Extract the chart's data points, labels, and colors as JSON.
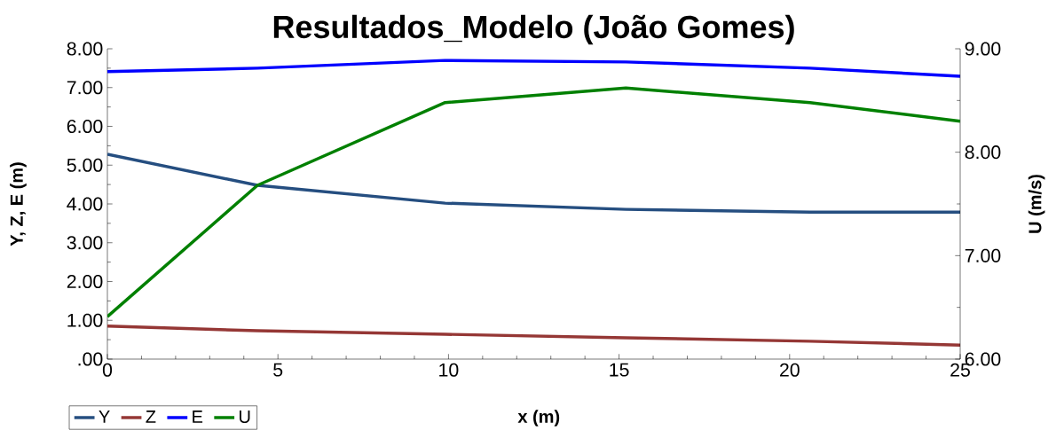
{
  "chart_data": {
    "type": "line",
    "title": "Resultados_Modelo (João Gomes)",
    "xlabel": "x (m)",
    "ylabel": "Y, Z, E (m)",
    "y2label": "U (m/s)",
    "x": [
      0,
      4.4,
      9.9,
      15.2,
      20.6,
      25
    ],
    "series": [
      {
        "name": "Y",
        "color": "#254e80",
        "values": [
          5.28,
          4.48,
          4.02,
          3.86,
          3.79,
          3.79
        ]
      },
      {
        "name": "Z",
        "color": "#953735",
        "values": [
          0.85,
          0.73,
          0.64,
          0.55,
          0.46,
          0.36
        ]
      },
      {
        "name": "E",
        "color": "#0000ff",
        "values": [
          7.41,
          7.5,
          7.7,
          7.66,
          7.5,
          7.29
        ]
      },
      {
        "name": "U",
        "color": "#008000",
        "axis": "y2",
        "values": [
          6.41,
          7.68,
          8.48,
          8.62,
          8.48,
          8.3
        ]
      }
    ],
    "xlim": [
      0,
      25
    ],
    "xticks": [
      0,
      5,
      10,
      15,
      20,
      25
    ],
    "ylim": [
      0,
      8
    ],
    "yticks": [
      {
        "value": 0,
        "label": ".00"
      },
      {
        "value": 1,
        "label": "1.00"
      },
      {
        "value": 2,
        "label": "2.00"
      },
      {
        "value": 3,
        "label": "3.00"
      },
      {
        "value": 4,
        "label": "4.00"
      },
      {
        "value": 5,
        "label": "5.00"
      },
      {
        "value": 6,
        "label": "6.00"
      },
      {
        "value": 7,
        "label": "7.00"
      },
      {
        "value": 8,
        "label": "8.00"
      }
    ],
    "y2lim": [
      6,
      9
    ],
    "y2ticks": [
      {
        "value": 6,
        "label": "6.00"
      },
      {
        "value": 7,
        "label": "7.00"
      },
      {
        "value": 8,
        "label": "8.00"
      },
      {
        "value": 9,
        "label": "9.00"
      }
    ],
    "legend": "bottom left",
    "grid": false,
    "marker": "none",
    "line_style": "solid"
  }
}
